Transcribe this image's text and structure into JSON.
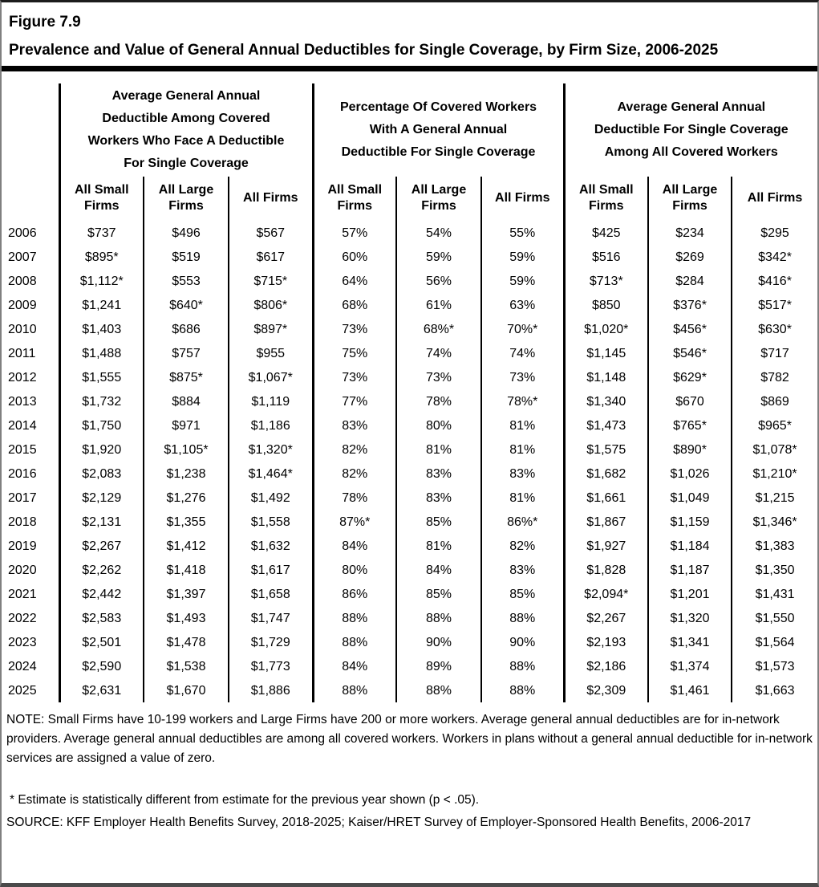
{
  "figure": {
    "label": "Figure 7.9",
    "title": "Prevalence and Value of General Annual Deductibles for Single Coverage, by Firm Size, 2006-2025"
  },
  "table": {
    "groups": [
      {
        "header": "Average General Annual\nDeductible Among Covered\nWorkers Who Face A Deductible\nFor Single Coverage"
      },
      {
        "header": "Percentage Of Covered Workers\nWith A General Annual\nDeductible For Single Coverage"
      },
      {
        "header": "Average General Annual\nDeductible For Single Coverage\nAmong All Covered Workers"
      }
    ],
    "subheaders": [
      "All Small Firms",
      "All Large Firms",
      "All Firms"
    ],
    "rows": [
      {
        "year": "2006",
        "values": [
          "$737",
          "$496",
          "$567",
          "57%",
          "54%",
          "55%",
          "$425",
          "$234",
          "$295"
        ]
      },
      {
        "year": "2007",
        "values": [
          "$895*",
          "$519",
          "$617",
          "60%",
          "59%",
          "59%",
          "$516",
          "$269",
          "$342*"
        ]
      },
      {
        "year": "2008",
        "values": [
          "$1,112*",
          "$553",
          "$715*",
          "64%",
          "56%",
          "59%",
          "$713*",
          "$284",
          "$416*"
        ]
      },
      {
        "year": "2009",
        "values": [
          "$1,241",
          "$640*",
          "$806*",
          "68%",
          "61%",
          "63%",
          "$850",
          "$376*",
          "$517*"
        ]
      },
      {
        "year": "2010",
        "values": [
          "$1,403",
          "$686",
          "$897*",
          "73%",
          "68%*",
          "70%*",
          "$1,020*",
          "$456*",
          "$630*"
        ]
      },
      {
        "year": "2011",
        "values": [
          "$1,488",
          "$757",
          "$955",
          "75%",
          "74%",
          "74%",
          "$1,145",
          "$546*",
          "$717"
        ]
      },
      {
        "year": "2012",
        "values": [
          "$1,555",
          "$875*",
          "$1,067*",
          "73%",
          "73%",
          "73%",
          "$1,148",
          "$629*",
          "$782"
        ]
      },
      {
        "year": "2013",
        "values": [
          "$1,732",
          "$884",
          "$1,119",
          "77%",
          "78%",
          "78%*",
          "$1,340",
          "$670",
          "$869"
        ]
      },
      {
        "year": "2014",
        "values": [
          "$1,750",
          "$971",
          "$1,186",
          "83%",
          "80%",
          "81%",
          "$1,473",
          "$765*",
          "$965*"
        ]
      },
      {
        "year": "2015",
        "values": [
          "$1,920",
          "$1,105*",
          "$1,320*",
          "82%",
          "81%",
          "81%",
          "$1,575",
          "$890*",
          "$1,078*"
        ]
      },
      {
        "year": "2016",
        "values": [
          "$2,083",
          "$1,238",
          "$1,464*",
          "82%",
          "83%",
          "83%",
          "$1,682",
          "$1,026",
          "$1,210*"
        ]
      },
      {
        "year": "2017",
        "values": [
          "$2,129",
          "$1,276",
          "$1,492",
          "78%",
          "83%",
          "81%",
          "$1,661",
          "$1,049",
          "$1,215"
        ]
      },
      {
        "year": "2018",
        "values": [
          "$2,131",
          "$1,355",
          "$1,558",
          "87%*",
          "85%",
          "86%*",
          "$1,867",
          "$1,159",
          "$1,346*"
        ]
      },
      {
        "year": "2019",
        "values": [
          "$2,267",
          "$1,412",
          "$1,632",
          "84%",
          "81%",
          "82%",
          "$1,927",
          "$1,184",
          "$1,383"
        ]
      },
      {
        "year": "2020",
        "values": [
          "$2,262",
          "$1,418",
          "$1,617",
          "80%",
          "84%",
          "83%",
          "$1,828",
          "$1,187",
          "$1,350"
        ]
      },
      {
        "year": "2021",
        "values": [
          "$2,442",
          "$1,397",
          "$1,658",
          "86%",
          "85%",
          "85%",
          "$2,094*",
          "$1,201",
          "$1,431"
        ]
      },
      {
        "year": "2022",
        "values": [
          "$2,583",
          "$1,493",
          "$1,747",
          "88%",
          "88%",
          "88%",
          "$2,267",
          "$1,320",
          "$1,550"
        ]
      },
      {
        "year": "2023",
        "values": [
          "$2,501",
          "$1,478",
          "$1,729",
          "88%",
          "90%",
          "90%",
          "$2,193",
          "$1,341",
          "$1,564"
        ]
      },
      {
        "year": "2024",
        "values": [
          "$2,590",
          "$1,538",
          "$1,773",
          "84%",
          "89%",
          "88%",
          "$2,186",
          "$1,374",
          "$1,573"
        ]
      },
      {
        "year": "2025",
        "values": [
          "$2,631",
          "$1,670",
          "$1,886",
          "88%",
          "88%",
          "88%",
          "$2,309",
          "$1,461",
          "$1,663"
        ]
      }
    ]
  },
  "footnotes": {
    "note": "NOTE: Small Firms have 10-199 workers and Large Firms have 200 or more workers. Average general annual deductibles are for in-network providers. Average general annual deductibles are among all covered workers. Workers in plans without a general annual deductible for in-network services are assigned a value of zero.",
    "significance": "* Estimate is statistically different from estimate for the previous year shown (p < .05).",
    "source": "SOURCE: KFF Employer Health Benefits Survey, 2018-2025; Kaiser/HRET Survey of Employer-Sponsored Health Benefits, 2006-2017"
  },
  "colors": {
    "text": "#000000",
    "table_lines": "#000000",
    "title_rule": "#000000",
    "outer_border": "#808080",
    "background": "#ffffff"
  }
}
